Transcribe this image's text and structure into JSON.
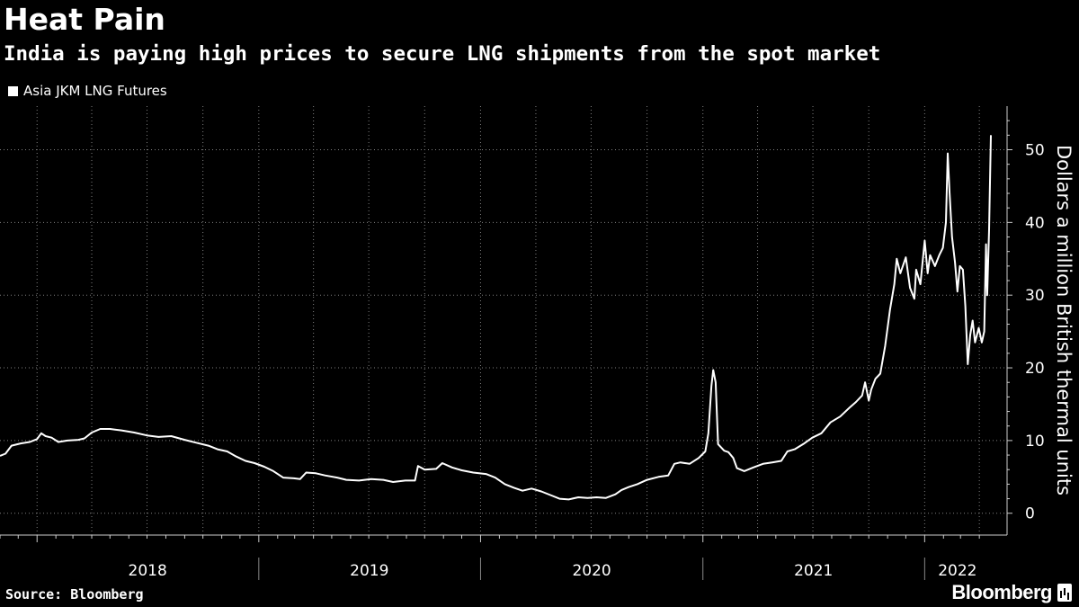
{
  "header": {
    "title": "Heat Pain",
    "subtitle": "India is paying high prices to secure LNG shipments from the spot market"
  },
  "legend": {
    "label": "Asia JKM LNG Futures"
  },
  "footer": {
    "source": "Source: Bloomberg",
    "brand": "Bloomberg"
  },
  "colors": {
    "background": "#000000",
    "line": "#ffffff",
    "grid": "#808080"
  },
  "chart_data": {
    "type": "line",
    "title": "Heat Pain",
    "ylabel": "Dollars a million British thermal units",
    "ylim": [
      -3,
      56
    ],
    "yticks": [
      0,
      10,
      20,
      30,
      40,
      50
    ],
    "xlim": [
      "2017-11-01",
      "2022-04-20"
    ],
    "x_tick_labels": [
      "2018",
      "2019",
      "2020",
      "2021",
      "2022"
    ],
    "grid": true,
    "legend_position": "top-left",
    "series": [
      {
        "name": "Asia JKM LNG Futures",
        "points": [
          [
            "2017-11-01",
            7.9
          ],
          [
            "2017-11-10",
            8.2
          ],
          [
            "2017-11-20",
            9.3
          ],
          [
            "2017-12-05",
            9.6
          ],
          [
            "2017-12-20",
            9.8
          ],
          [
            "2018-01-01",
            10.2
          ],
          [
            "2018-01-08",
            11.0
          ],
          [
            "2018-01-15",
            10.6
          ],
          [
            "2018-01-25",
            10.4
          ],
          [
            "2018-02-05",
            9.8
          ],
          [
            "2018-02-20",
            10.0
          ],
          [
            "2018-03-10",
            10.1
          ],
          [
            "2018-03-20",
            10.3
          ],
          [
            "2018-04-01",
            11.1
          ],
          [
            "2018-04-15",
            11.6
          ],
          [
            "2018-05-01",
            11.6
          ],
          [
            "2018-05-20",
            11.4
          ],
          [
            "2018-06-10",
            11.1
          ],
          [
            "2018-07-01",
            10.7
          ],
          [
            "2018-07-20",
            10.5
          ],
          [
            "2018-08-10",
            10.6
          ],
          [
            "2018-09-01",
            10.1
          ],
          [
            "2018-09-20",
            9.7
          ],
          [
            "2018-10-10",
            9.3
          ],
          [
            "2018-10-25",
            8.8
          ],
          [
            "2018-11-10",
            8.5
          ],
          [
            "2018-11-25",
            7.8
          ],
          [
            "2018-12-10",
            7.2
          ],
          [
            "2018-12-25",
            6.9
          ],
          [
            "2019-01-10",
            6.4
          ],
          [
            "2019-01-25",
            5.8
          ],
          [
            "2019-02-10",
            4.9
          ],
          [
            "2019-02-28",
            4.8
          ],
          [
            "2019-03-10",
            4.7
          ],
          [
            "2019-03-20",
            5.6
          ],
          [
            "2019-04-05",
            5.5
          ],
          [
            "2019-04-20",
            5.2
          ],
          [
            "2019-05-10",
            4.9
          ],
          [
            "2019-05-25",
            4.6
          ],
          [
            "2019-06-15",
            4.5
          ],
          [
            "2019-07-05",
            4.7
          ],
          [
            "2019-07-25",
            4.6
          ],
          [
            "2019-08-10",
            4.3
          ],
          [
            "2019-08-30",
            4.5
          ],
          [
            "2019-09-15",
            4.5
          ],
          [
            "2019-09-20",
            6.5
          ],
          [
            "2019-10-01",
            6.0
          ],
          [
            "2019-10-20",
            6.1
          ],
          [
            "2019-10-30",
            6.9
          ],
          [
            "2019-11-15",
            6.3
          ],
          [
            "2019-12-01",
            5.9
          ],
          [
            "2019-12-20",
            5.6
          ],
          [
            "2020-01-10",
            5.4
          ],
          [
            "2020-01-25",
            4.9
          ],
          [
            "2020-02-10",
            4.0
          ],
          [
            "2020-02-25",
            3.5
          ],
          [
            "2020-03-10",
            3.1
          ],
          [
            "2020-03-25",
            3.4
          ],
          [
            "2020-04-10",
            3.0
          ],
          [
            "2020-04-25",
            2.5
          ],
          [
            "2020-05-10",
            2.0
          ],
          [
            "2020-05-25",
            1.9
          ],
          [
            "2020-06-10",
            2.2
          ],
          [
            "2020-06-25",
            2.1
          ],
          [
            "2020-07-10",
            2.2
          ],
          [
            "2020-07-25",
            2.1
          ],
          [
            "2020-08-10",
            2.6
          ],
          [
            "2020-08-20",
            3.2
          ],
          [
            "2020-09-01",
            3.6
          ],
          [
            "2020-09-15",
            4.0
          ],
          [
            "2020-10-01",
            4.6
          ],
          [
            "2020-10-20",
            5.0
          ],
          [
            "2020-11-05",
            5.2
          ],
          [
            "2020-11-15",
            6.8
          ],
          [
            "2020-11-25",
            7.0
          ],
          [
            "2020-12-10",
            6.8
          ],
          [
            "2020-12-25",
            7.6
          ],
          [
            "2021-01-05",
            8.5
          ],
          [
            "2021-01-10",
            11.0
          ],
          [
            "2021-01-15",
            17.5
          ],
          [
            "2021-01-18",
            19.7
          ],
          [
            "2021-01-22",
            18.0
          ],
          [
            "2021-01-26",
            9.5
          ],
          [
            "2021-02-05",
            8.6
          ],
          [
            "2021-02-12",
            8.4
          ],
          [
            "2021-02-20",
            7.6
          ],
          [
            "2021-02-26",
            6.2
          ],
          [
            "2021-03-10",
            5.8
          ],
          [
            "2021-03-25",
            6.3
          ],
          [
            "2021-04-10",
            6.8
          ],
          [
            "2021-04-25",
            7.0
          ],
          [
            "2021-05-10",
            7.2
          ],
          [
            "2021-05-20",
            8.5
          ],
          [
            "2021-06-01",
            8.8
          ],
          [
            "2021-06-15",
            9.5
          ],
          [
            "2021-06-30",
            10.4
          ],
          [
            "2021-07-15",
            11.0
          ],
          [
            "2021-07-30",
            12.5
          ],
          [
            "2021-08-15",
            13.3
          ],
          [
            "2021-08-30",
            14.5
          ],
          [
            "2021-09-10",
            15.3
          ],
          [
            "2021-09-20",
            16.2
          ],
          [
            "2021-09-25",
            18.0
          ],
          [
            "2021-10-01",
            15.5
          ],
          [
            "2021-10-05",
            17.0
          ],
          [
            "2021-10-12",
            18.5
          ],
          [
            "2021-10-20",
            19.2
          ],
          [
            "2021-10-28",
            23.0
          ],
          [
            "2021-11-05",
            28.0
          ],
          [
            "2021-11-12",
            31.5
          ],
          [
            "2021-11-16",
            35.0
          ],
          [
            "2021-11-22",
            33.0
          ],
          [
            "2021-12-01",
            35.2
          ],
          [
            "2021-12-08",
            31.0
          ],
          [
            "2021-12-15",
            29.5
          ],
          [
            "2021-12-18",
            33.5
          ],
          [
            "2021-12-25",
            31.5
          ],
          [
            "2022-01-01",
            37.5
          ],
          [
            "2022-01-06",
            33.0
          ],
          [
            "2022-01-10",
            35.5
          ],
          [
            "2022-01-18",
            34.0
          ],
          [
            "2022-01-25",
            35.5
          ],
          [
            "2022-01-31",
            36.5
          ],
          [
            "2022-02-05",
            40.0
          ],
          [
            "2022-02-08",
            49.5
          ],
          [
            "2022-02-11",
            44.0
          ],
          [
            "2022-02-15",
            38.0
          ],
          [
            "2022-02-20",
            34.5
          ],
          [
            "2022-02-24",
            30.5
          ],
          [
            "2022-02-28",
            34.0
          ],
          [
            "2022-03-05",
            33.5
          ],
          [
            "2022-03-09",
            28.5
          ],
          [
            "2022-03-13",
            20.5
          ],
          [
            "2022-03-17",
            24.5
          ],
          [
            "2022-03-21",
            26.5
          ],
          [
            "2022-03-25",
            23.5
          ],
          [
            "2022-03-31",
            25.5
          ],
          [
            "2022-04-05",
            23.5
          ],
          [
            "2022-04-09",
            25.0
          ],
          [
            "2022-04-12",
            37.0
          ],
          [
            "2022-04-14",
            30.0
          ],
          [
            "2022-04-17",
            39.0
          ],
          [
            "2022-04-20",
            52.0
          ]
        ]
      }
    ]
  }
}
